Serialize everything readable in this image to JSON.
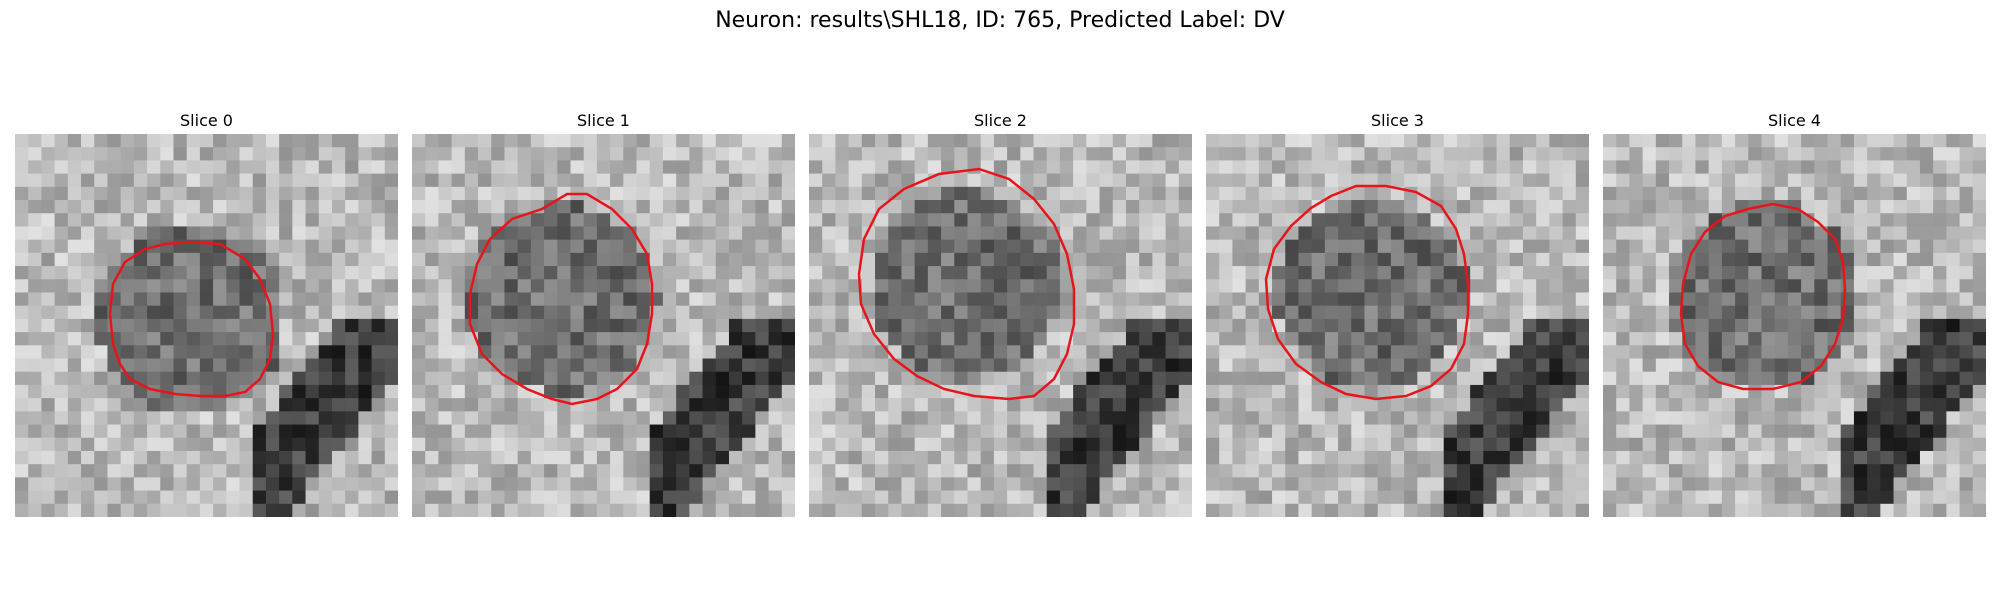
{
  "figure": {
    "title": "Neuron: results\\SHL18, ID: 765, Predicted Label: DV"
  },
  "slices": [
    {
      "label": "Slice 0"
    },
    {
      "label": "Slice 1"
    },
    {
      "label": "Slice 2"
    },
    {
      "label": "Slice 3"
    },
    {
      "label": "Slice 4"
    }
  ],
  "colors": {
    "contour": "#e8141b",
    "background": "#ffffff"
  }
}
